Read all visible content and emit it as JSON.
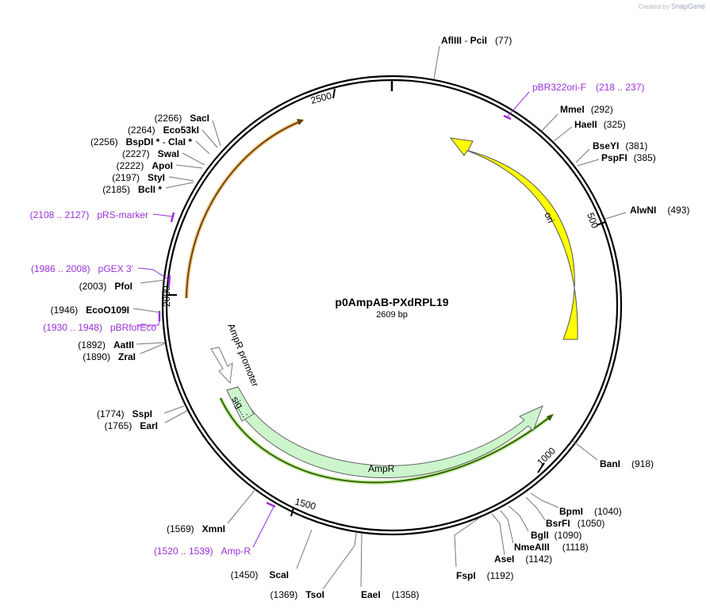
{
  "watermark": {
    "prefix": "Created by",
    "brand": "SnapGene"
  },
  "plasmid": {
    "name": "p0AmpAB-PXdRPL19",
    "length_label": "2609 bp",
    "length": 2609
  },
  "ticks": [
    "500",
    "1000",
    "1500",
    "2000",
    "2500"
  ],
  "sites": [
    {
      "name": "AflIII",
      "name2": "PciI",
      "pos": "(77)"
    },
    {
      "name": "MmeI",
      "pos": "(292)"
    },
    {
      "name": "HaeII",
      "pos": "(325)"
    },
    {
      "name": "BseYI",
      "pos": "(381)"
    },
    {
      "name": "PspFI",
      "pos": "(385)"
    },
    {
      "name": "AlwNI",
      "pos": "(493)"
    },
    {
      "name": "BanI",
      "pos": "(918)"
    },
    {
      "name": "BpmI",
      "pos": "(1040)"
    },
    {
      "name": "BsrFI",
      "pos": "(1050)"
    },
    {
      "name": "BglI",
      "pos": "(1090)"
    },
    {
      "name": "NmeAIII",
      "pos": "(1118)"
    },
    {
      "name": "AseI",
      "pos": "(1142)"
    },
    {
      "name": "FspI",
      "pos": "(1192)"
    },
    {
      "name": "EaeI",
      "pos": "(1358)"
    },
    {
      "name": "TsoI",
      "pos": "(1369)"
    },
    {
      "name": "ScaI",
      "pos": "(1450)"
    },
    {
      "name": "XmnI",
      "pos": "(1569)"
    },
    {
      "name": "EarI",
      "pos": "(1765)"
    },
    {
      "name": "SspI",
      "pos": "(1774)"
    },
    {
      "name": "ZraI",
      "pos": "(1890)"
    },
    {
      "name": "AatII",
      "pos": "(1892)"
    },
    {
      "name": "EcoO109I",
      "pos": "(1946)"
    },
    {
      "name": "PfoI",
      "pos": "(2003)"
    },
    {
      "name": "BclI *",
      "pos": "(2185)"
    },
    {
      "name": "StyI",
      "pos": "(2197)"
    },
    {
      "name": "ApoI",
      "pos": "(2222)"
    },
    {
      "name": "SwaI",
      "pos": "(2227)"
    },
    {
      "name": "BspDI *",
      "name2": "ClaI *",
      "pos": "(2256)"
    },
    {
      "name": "Eco53kI",
      "pos": "(2264)"
    },
    {
      "name": "SacI",
      "pos": "(2266)"
    }
  ],
  "primers": [
    {
      "name": "pBR322ori-F",
      "range": "(218 .. 237)"
    },
    {
      "name": "pRS-marker",
      "range": "(2108 .. 2127)"
    },
    {
      "name": "pGEX 3'",
      "range": "(1986 .. 2008)"
    },
    {
      "name": "pBRforEco",
      "range": "(1930 .. 1948)"
    },
    {
      "name": "Amp-R",
      "range": "(1520 .. 1539)"
    }
  ],
  "features": {
    "ori": "ori",
    "ampr": "AmpR",
    "ampr_promoter": "AmpR promoter",
    "sig": "sig...:"
  },
  "colors": {
    "ori": "#ffff00",
    "ampr": "#ccf5cc",
    "orf_orange": "#e8a33c",
    "orf_green": "#5aa020",
    "primer": "#9b30d9",
    "backbone": "#000000"
  }
}
